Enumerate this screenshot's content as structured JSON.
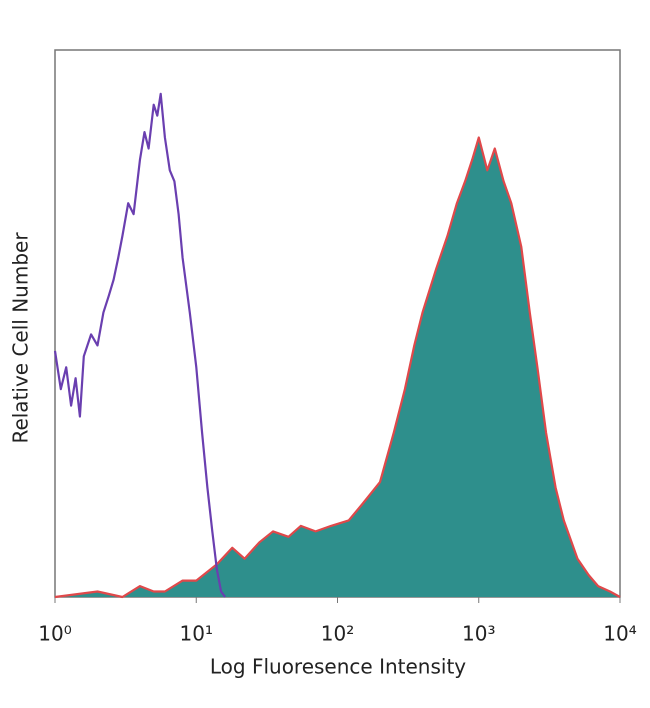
{
  "chart_data": {
    "type": "histogram-overlay",
    "xlabel": "Log Fluoresence Intensity",
    "ylabel": "Relative Cell Number",
    "xscale": "log",
    "xlim": [
      1,
      10000
    ],
    "xticks": [
      {
        "value": 1,
        "label": "10⁰"
      },
      {
        "value": 10,
        "label": "10¹"
      },
      {
        "value": 100,
        "label": "10²"
      },
      {
        "value": 1000,
        "label": "10³"
      },
      {
        "value": 10000,
        "label": "10⁴"
      }
    ],
    "ylim": [
      0,
      100
    ],
    "series": [
      {
        "color": "#6a3fb0",
        "filled": false,
        "x": [
          1,
          1.1,
          1.2,
          1.3,
          1.4,
          1.5,
          1.6,
          1.8,
          2.0,
          2.2,
          2.4,
          2.6,
          2.8,
          3.0,
          3.3,
          3.6,
          4.0,
          4.3,
          4.6,
          5.0,
          5.3,
          5.6,
          6.0,
          6.5,
          7.0,
          7.5,
          8.0,
          9.0,
          10,
          11,
          12,
          13,
          14,
          15,
          16
        ],
        "values": [
          45,
          38,
          42,
          35,
          40,
          33,
          44,
          48,
          46,
          52,
          55,
          58,
          62,
          66,
          72,
          70,
          80,
          85,
          82,
          90,
          88,
          92,
          84,
          78,
          76,
          70,
          62,
          52,
          42,
          30,
          20,
          12,
          5,
          1,
          0
        ]
      },
      {
        "color": "#e0484a",
        "fill": "#2e8f8c",
        "filled": true,
        "x": [
          1,
          2,
          3,
          4,
          5,
          6,
          8,
          10,
          14,
          18,
          22,
          28,
          35,
          45,
          55,
          70,
          90,
          120,
          150,
          200,
          250,
          300,
          350,
          400,
          500,
          600,
          700,
          800,
          900,
          1000,
          1150,
          1300,
          1500,
          1700,
          2000,
          2300,
          2600,
          3000,
          3500,
          4000,
          5000,
          6000,
          7000,
          8500,
          10000
        ],
        "values": [
          0,
          1,
          0,
          2,
          1,
          1,
          3,
          3,
          6,
          9,
          7,
          10,
          12,
          11,
          13,
          12,
          13,
          14,
          17,
          21,
          30,
          38,
          46,
          52,
          60,
          66,
          72,
          76,
          80,
          84,
          78,
          82,
          76,
          72,
          64,
          52,
          42,
          30,
          20,
          14,
          7,
          4,
          2,
          1,
          0
        ]
      }
    ]
  }
}
